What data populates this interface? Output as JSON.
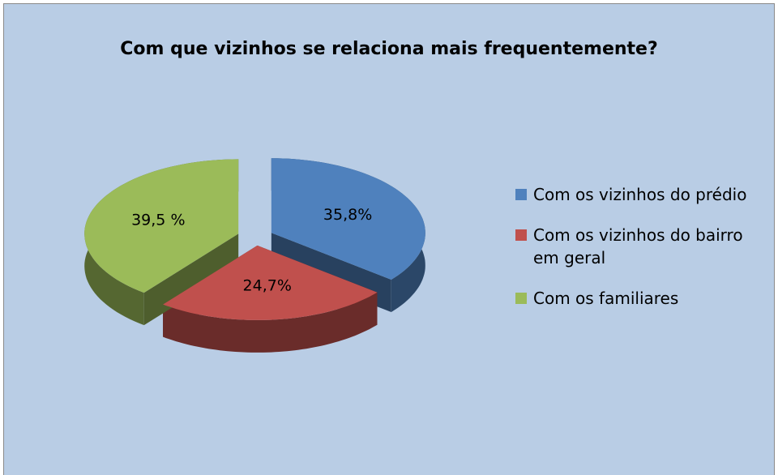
{
  "chart_data": {
    "type": "pie",
    "title": "Com que vizinhos se relaciona mais frequentemente?",
    "categories": [
      "Com os vizinhos do prédio",
      "Com os vizinhos do bairro em geral",
      "Com os familiares"
    ],
    "values": [
      35.8,
      24.7,
      39.5
    ],
    "value_labels": [
      "35,8%",
      "24,7%",
      "39,5 %"
    ],
    "colors": [
      "#4f81bd",
      "#c0504d",
      "#9bbb59"
    ],
    "legend": "right"
  }
}
